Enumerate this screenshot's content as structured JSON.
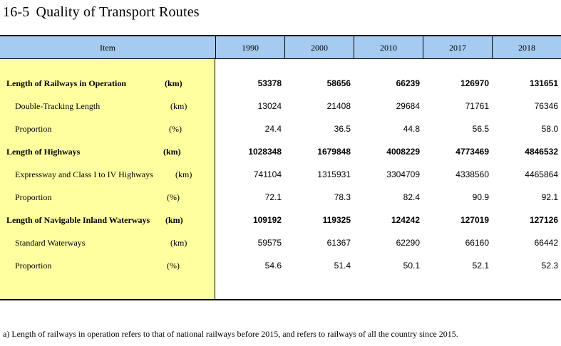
{
  "title": {
    "number": "16-5",
    "text": "Quality of Transport Routes"
  },
  "table": {
    "header": {
      "item": "Item",
      "years": [
        "1990",
        "2000",
        "2010",
        "2017",
        "2018"
      ]
    },
    "rows": [
      {
        "label": "Length of Railways in Operation",
        "unit": "(km)",
        "values": [
          "53378",
          "58656",
          "66239",
          "126970",
          "131651"
        ]
      },
      {
        "label": "Double-Tracking Length",
        "unit": "(km)",
        "values": [
          "13024",
          "21408",
          "29684",
          "71761",
          "76346"
        ]
      },
      {
        "label": "Proportion",
        "unit": "(%)",
        "values": [
          "24.4",
          "36.5",
          "44.8",
          "56.5",
          "58.0"
        ]
      },
      {
        "label": "Length of Highways",
        "unit": "(km)",
        "values": [
          "1028348",
          "1679848",
          "4008229",
          "4773469",
          "4846532"
        ]
      },
      {
        "label": "Expressway and Class I to IV Highways",
        "unit": "(km)",
        "values": [
          "741104",
          "1315931",
          "3304709",
          "4338560",
          "4465864"
        ]
      },
      {
        "label": "Proportion",
        "unit": "(%)",
        "values": [
          "72.1",
          "78.3",
          "82.4",
          "90.9",
          "92.1"
        ]
      },
      {
        "label": "Length of Navigable Inland Waterways",
        "unit": "(km)",
        "values": [
          "109192",
          "119325",
          "124242",
          "127019",
          "127126"
        ]
      },
      {
        "label": "Standard Waterways",
        "unit": "(km)",
        "values": [
          "59575",
          "61367",
          "62290",
          "66160",
          "66442"
        ]
      },
      {
        "label": "Proportion",
        "unit": "(%)",
        "values": [
          "54.6",
          "51.4",
          "50.1",
          "52.1",
          "52.3"
        ]
      }
    ]
  },
  "footnote": "a) Length of railways in operation refers to that of national railways before 2015, and refers to railways of all the country since 2015."
}
